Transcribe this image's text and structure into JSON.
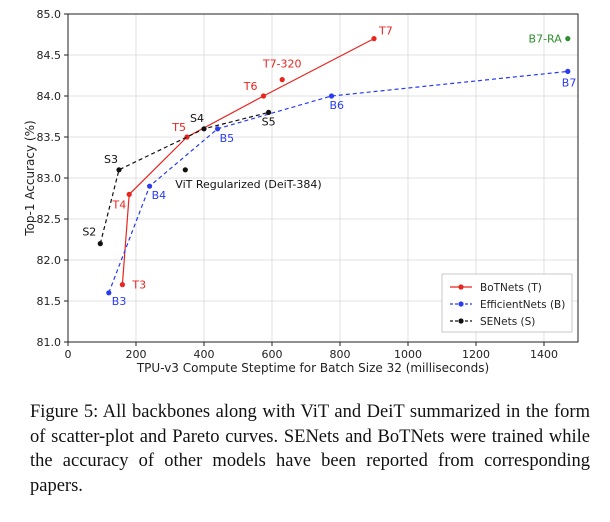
{
  "chart_data": {
    "type": "scatter",
    "xlabel": "TPU-v3 Compute Steptime for Batch Size 32 (milliseconds)",
    "ylabel": "Top-1 Accuracy (%)",
    "xlim": [
      0,
      1500
    ],
    "ylim": [
      81.0,
      85.0
    ],
    "xticks": [
      0,
      200,
      400,
      600,
      800,
      1000,
      1200,
      1400
    ],
    "yticks": [
      81.0,
      81.5,
      82.0,
      82.5,
      83.0,
      83.5,
      84.0,
      84.5,
      85.0
    ],
    "grid": true,
    "legend_position": "bottom-right",
    "series": [
      {
        "name": "BoTNets (T)",
        "color": "#e8251f",
        "line": "solid",
        "points": [
          {
            "label": "T3",
            "x": 160,
            "y": 81.7
          },
          {
            "label": "T4",
            "x": 180,
            "y": 82.8
          },
          {
            "label": "T5",
            "x": 350,
            "y": 83.5
          },
          {
            "label": "T6",
            "x": 575,
            "y": 84.0
          },
          {
            "label": "T7",
            "x": 900,
            "y": 84.7
          }
        ],
        "extra_points": [
          {
            "label": "T7-320",
            "x": 630,
            "y": 84.2
          }
        ]
      },
      {
        "name": "EfficientNets (B)",
        "color": "#2a3bf0",
        "line": "dashed",
        "points": [
          {
            "label": "B3",
            "x": 120,
            "y": 81.6
          },
          {
            "label": "B4",
            "x": 240,
            "y": 82.9
          },
          {
            "label": "B5",
            "x": 440,
            "y": 83.6
          },
          {
            "label": "B6",
            "x": 775,
            "y": 84.0
          },
          {
            "label": "B7",
            "x": 1470,
            "y": 84.3
          }
        ]
      },
      {
        "name": "SENets (S)",
        "color": "#111111",
        "line": "dashed",
        "points": [
          {
            "label": "S2",
            "x": 95,
            "y": 82.2
          },
          {
            "label": "S3",
            "x": 150,
            "y": 83.1
          },
          {
            "label": "S4",
            "x": 400,
            "y": 83.6
          },
          {
            "label": "S5",
            "x": 590,
            "y": 83.8
          }
        ]
      }
    ],
    "annotations": [
      {
        "label": "ViT Regularized (DeiT-384)",
        "x": 345,
        "y": 83.1,
        "color": "#111111"
      },
      {
        "label": "B7-RA",
        "x": 1470,
        "y": 84.7,
        "color": "#2f8f2f"
      }
    ]
  },
  "caption": "Figure 5: All backbones along with ViT and DeiT summarized in the form of scatter-plot and Pareto curves. SENets and BoTNets were trained while the accuracy of other models have been reported from corresponding papers."
}
